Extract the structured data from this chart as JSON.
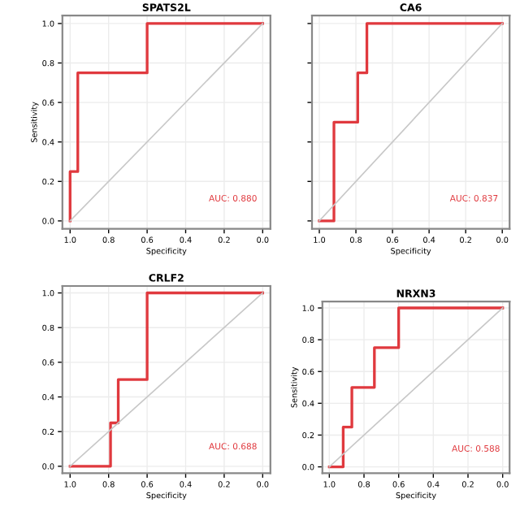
{
  "chart_data": [
    {
      "type": "line",
      "title": "SPATS2L",
      "xlabel": "Specificity",
      "ylabel": "Sensitivity",
      "xlim": [
        1.04,
        -0.04
      ],
      "ylim": [
        -0.04,
        1.04
      ],
      "xticks": [
        {
          "value": 1,
          "label": "1.0"
        },
        {
          "value": 0.8,
          "label": "0.8"
        },
        {
          "value": 0.6,
          "label": "0.6"
        },
        {
          "value": 0.4,
          "label": "0.4"
        },
        {
          "value": 0.2,
          "label": "0.2"
        },
        {
          "value": 0,
          "label": "0.0"
        }
      ],
      "yticks": [
        {
          "value": 0,
          "label": "0.0"
        },
        {
          "value": 0.2,
          "label": "0.2"
        },
        {
          "value": 0.4,
          "label": "0.4"
        },
        {
          "value": 0.6,
          "label": "0.6"
        },
        {
          "value": 0.8,
          "label": "0.8"
        },
        {
          "value": 1,
          "label": "1.0"
        }
      ],
      "grid": true,
      "annotations": [
        "AUC: 0.880"
      ],
      "series": [
        {
          "color": "#e0393e",
          "x": [
            1,
            1,
            0.96,
            0.96,
            0.6,
            0.6,
            0
          ],
          "values": [
            0,
            0.25,
            0.25,
            0.75,
            0.75,
            1,
            1
          ]
        },
        {
          "color": "#c8c8c8",
          "x": [
            1,
            0
          ],
          "values": [
            0,
            1
          ]
        }
      ]
    },
    {
      "type": "line",
      "title": "CA6",
      "xlabel": "Specificity",
      "tick_labels": "x",
      "xlim": [
        1.04,
        -0.04
      ],
      "ylim": [
        -0.04,
        1.04
      ],
      "xticks": [
        {
          "value": 1,
          "label": "1.0"
        },
        {
          "value": 0.8,
          "label": "0.8"
        },
        {
          "value": 0.6,
          "label": "0.6"
        },
        {
          "value": 0.4,
          "label": "0.4"
        },
        {
          "value": 0.2,
          "label": "0.2"
        },
        {
          "value": 0,
          "label": "0.0"
        }
      ],
      "yticks": [
        {
          "value": 0,
          "label": null
        },
        {
          "value": 0.2,
          "label": null
        },
        {
          "value": 0.4,
          "label": null
        },
        {
          "value": 0.6,
          "label": null
        },
        {
          "value": 0.8,
          "label": null
        },
        {
          "value": 1,
          "label": null
        }
      ],
      "grid": true,
      "annotations": [
        "AUC: 0.837"
      ],
      "series": [
        {
          "color": "#e0393e",
          "x": [
            1,
            0.92,
            0.92,
            0.79,
            0.79,
            0.74,
            0.74,
            0
          ],
          "values": [
            0,
            0,
            0.5,
            0.5,
            0.75,
            0.75,
            1,
            1
          ]
        },
        {
          "color": "#c8c8c8",
          "x": [
            1,
            0
          ],
          "values": [
            0,
            1
          ]
        }
      ]
    },
    {
      "type": "line",
      "title": "CRLF2",
      "xlabel": "Specificity",
      "xlim": [
        1.04,
        -0.04
      ],
      "ylim": [
        -0.04,
        1.04
      ],
      "xticks": [
        {
          "value": 1,
          "label": "1.0"
        },
        {
          "value": 0.8,
          "label": "0.8"
        },
        {
          "value": 0.6,
          "label": "0.6"
        },
        {
          "value": 0.4,
          "label": "0.4"
        },
        {
          "value": 0.2,
          "label": "0.2"
        },
        {
          "value": 0,
          "label": "0.0"
        }
      ],
      "yticks": [
        {
          "value": 0,
          "label": "0.0"
        },
        {
          "value": 0.2,
          "label": "0.2"
        },
        {
          "value": 0.4,
          "label": "0.4"
        },
        {
          "value": 0.6,
          "label": "0.6"
        },
        {
          "value": 0.8,
          "label": "0.8"
        },
        {
          "value": 1,
          "label": "1.0"
        }
      ],
      "grid": true,
      "annotations": [
        "AUC: 0.688"
      ],
      "series": [
        {
          "color": "#e0393e",
          "x": [
            1,
            0.79,
            0.79,
            0.75,
            0.75,
            0.6,
            0.6,
            0
          ],
          "values": [
            0,
            0,
            0.25,
            0.25,
            0.5,
            0.5,
            1,
            1
          ]
        },
        {
          "color": "#c8c8c8",
          "x": [
            1,
            0
          ],
          "values": [
            0,
            1
          ]
        }
      ]
    },
    {
      "type": "line",
      "title": "NRXN3",
      "xlabel": "Specificity",
      "ylabel": "Sensitivity",
      "xlim": [
        1.04,
        -0.04
      ],
      "ylim": [
        -0.04,
        1.04
      ],
      "xticks": [
        {
          "value": 1,
          "label": "1.0"
        },
        {
          "value": 0.8,
          "label": "0.8"
        },
        {
          "value": 0.6,
          "label": "0.6"
        },
        {
          "value": 0.4,
          "label": "0.4"
        },
        {
          "value": 0.2,
          "label": "0.2"
        },
        {
          "value": 0,
          "label": "0.0"
        }
      ],
      "yticks": [
        {
          "value": 0,
          "label": "0.0"
        },
        {
          "value": 0.2,
          "label": "0.2"
        },
        {
          "value": 0.4,
          "label": "0.4"
        },
        {
          "value": 0.6,
          "label": "0.6"
        },
        {
          "value": 0.8,
          "label": "0.8"
        },
        {
          "value": 1,
          "label": "1.0"
        }
      ],
      "grid": true,
      "annotations": [
        "AUC: 0.588"
      ],
      "series": [
        {
          "color": "#e0393e",
          "x": [
            1,
            0.92,
            0.92,
            0.87,
            0.87,
            0.74,
            0.74,
            0.6,
            0.6,
            0
          ],
          "values": [
            0,
            0,
            0.25,
            0.25,
            0.5,
            0.5,
            0.75,
            0.75,
            1,
            1
          ]
        },
        {
          "color": "#c8c8c8",
          "x": [
            1,
            0
          ],
          "values": [
            0,
            1
          ]
        }
      ]
    }
  ]
}
